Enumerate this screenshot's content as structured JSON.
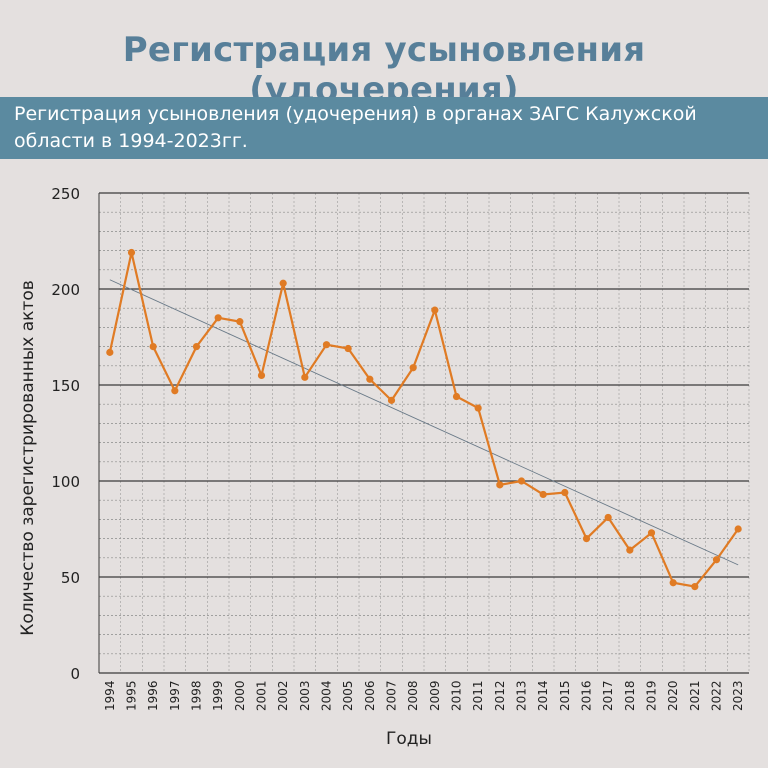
{
  "page": {
    "title": "Регистрация усыновления (удочерения)",
    "subtitle": "Регистрация усыновления (удочерения) в органах ЗАГС Калужской области в 1994-2023гг."
  },
  "chart_data": {
    "type": "line",
    "title": "",
    "xlabel": "Годы",
    "ylabel": "Количество зарегистрированных актов",
    "ylim": [
      0,
      250
    ],
    "yticks": [
      0,
      50,
      100,
      150,
      200,
      250
    ],
    "grid": true,
    "categories": [
      "1994",
      "1995",
      "1996",
      "1997",
      "1998",
      "1999",
      "2000",
      "2001",
      "2002",
      "2003",
      "2004",
      "2005",
      "2006",
      "2007",
      "2008",
      "2009",
      "2010",
      "2011",
      "2012",
      "2013",
      "2014",
      "2015",
      "2016",
      "2017",
      "2018",
      "2019",
      "2020",
      "2021",
      "2022",
      "2023"
    ],
    "series": [
      {
        "values": [
          167,
          219,
          170,
          147,
          170,
          185,
          183,
          155,
          203,
          154,
          171,
          169,
          153,
          142,
          159,
          189,
          144,
          138,
          98,
          100,
          93,
          94,
          70,
          81,
          64,
          73,
          47,
          45,
          59,
          75
        ],
        "color": "#e07b24"
      }
    ],
    "trendline": {
      "type": "linear",
      "color": "#6a7a88"
    }
  }
}
